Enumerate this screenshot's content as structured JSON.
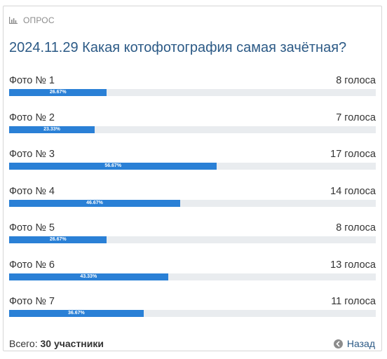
{
  "poll": {
    "section_label": "ОПРОС",
    "title": "2024.11.29 Какая котофотография самая зачётная?",
    "options": [
      {
        "label": "Фото № 1",
        "votes": "8 голоса",
        "percent_label": "26.67%",
        "fraction": 0.2667
      },
      {
        "label": "Фото № 2",
        "votes": "7 голоса",
        "percent_label": "23.33%",
        "fraction": 0.2333
      },
      {
        "label": "Фото № 3",
        "votes": "17 голоса",
        "percent_label": "56.67%",
        "fraction": 0.5667
      },
      {
        "label": "Фото № 4",
        "votes": "14 голоса",
        "percent_label": "46.67%",
        "fraction": 0.4667
      },
      {
        "label": "Фото № 5",
        "votes": "8 голоса",
        "percent_label": "26.67%",
        "fraction": 0.2667
      },
      {
        "label": "Фото № 6",
        "votes": "13 голоса",
        "percent_label": "43.33%",
        "fraction": 0.4333
      },
      {
        "label": "Фото № 7",
        "votes": "11 голоса",
        "percent_label": "36.67%",
        "fraction": 0.3667
      }
    ],
    "total_label": "Всего:",
    "total_value": "30 участники",
    "back_label": "Назад"
  },
  "colors": {
    "bar_fill": "#2a80d6",
    "bar_track": "#e9ecef",
    "title": "#2c5a86"
  },
  "icons": {
    "header": "bar-chart-icon",
    "back": "arrow-left-circle-icon"
  }
}
